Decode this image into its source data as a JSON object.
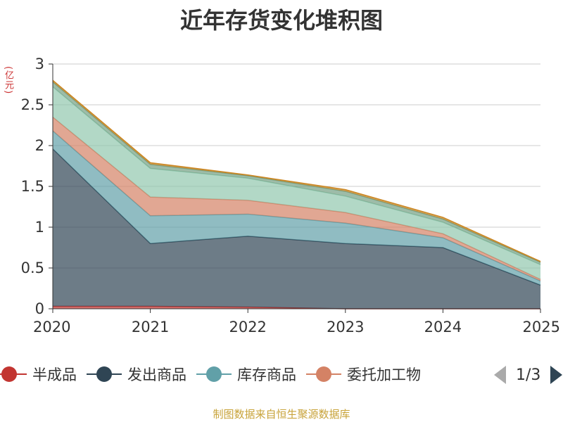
{
  "title": "近年存货变化堆积图",
  "unit": "(亿元)",
  "footer": "制图数据来自恒生聚源数据库",
  "pager": {
    "text": "1/3"
  },
  "legend": [
    {
      "name": "半成品",
      "color": "#c23531"
    },
    {
      "name": "发出商品",
      "color": "#2f4554"
    },
    {
      "name": "库存商品",
      "color": "#61a0a8"
    },
    {
      "name": "委托加工物",
      "color": "#d48265"
    }
  ],
  "chart_data": {
    "type": "area",
    "stacked": true,
    "x": [
      "2020",
      "2021",
      "2022",
      "2023",
      "2024",
      "2025"
    ],
    "ylim": [
      0,
      3
    ],
    "yticks": [
      0,
      0.5,
      1,
      1.5,
      2,
      2.5,
      3
    ],
    "ylabel": "(亿元)",
    "grid": true,
    "series": [
      {
        "name": "半成品",
        "color": "#c23531",
        "values": [
          0.03,
          0.03,
          0.02,
          0.0,
          0.0,
          0.0
        ]
      },
      {
        "name": "发出商品",
        "color": "#2f4554",
        "values": [
          1.93,
          0.77,
          0.87,
          0.8,
          0.75,
          0.29
        ]
      },
      {
        "name": "库存商品",
        "color": "#61a0a8",
        "values": [
          0.22,
          0.34,
          0.27,
          0.25,
          0.12,
          0.05
        ]
      },
      {
        "name": "委托加工物",
        "color": "#d48265",
        "values": [
          0.17,
          0.23,
          0.17,
          0.13,
          0.05,
          0.02
        ]
      },
      {
        "color": "#91c7ae",
        "values": [
          0.37,
          0.35,
          0.27,
          0.2,
          0.14,
          0.18
        ]
      },
      {
        "color": "#749f83",
        "values": [
          0.06,
          0.05,
          0.03,
          0.06,
          0.04,
          0.03
        ]
      },
      {
        "color": "#ca8622",
        "values": [
          0.02,
          0.02,
          0.01,
          0.02,
          0.02,
          0.01
        ]
      }
    ]
  }
}
